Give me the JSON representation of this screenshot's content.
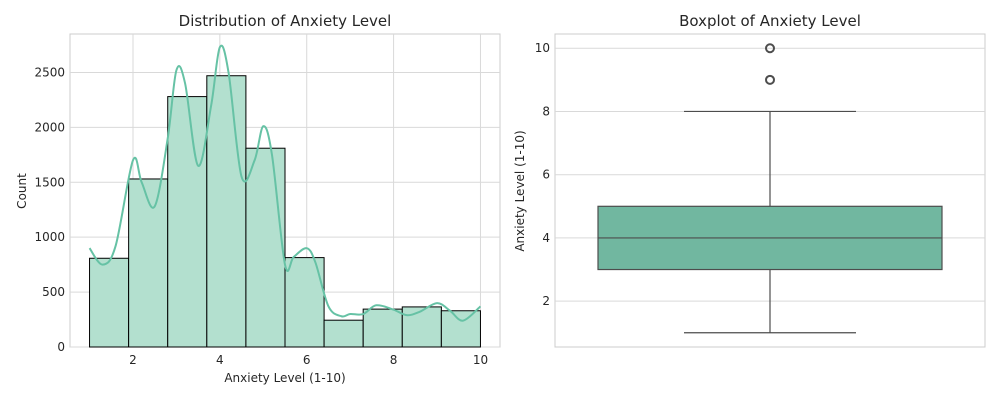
{
  "chart_data": [
    {
      "type": "bar",
      "subtype": "histogram_with_kde",
      "title": "Distribution of Anxiety Level",
      "xlabel": "Anxiety Level (1-10)",
      "ylabel": "Count",
      "xlim": [
        0.55,
        10.45
      ],
      "ylim": [
        0,
        2850
      ],
      "bin_edges": [
        1.0,
        1.9,
        2.8,
        3.7,
        4.6,
        5.5,
        6.4,
        7.3,
        8.2,
        9.1,
        10.0
      ],
      "values": [
        808,
        1530,
        2280,
        2470,
        1810,
        814,
        244,
        345,
        365,
        330
      ],
      "kde": {
        "x": [
          1.0,
          1.3,
          1.6,
          2.0,
          2.2,
          2.5,
          2.8,
          3.0,
          3.2,
          3.5,
          3.8,
          4.0,
          4.2,
          4.5,
          4.8,
          5.0,
          5.2,
          5.5,
          5.7,
          6.0,
          6.2,
          6.5,
          6.8,
          7.0,
          7.3,
          7.6,
          8.0,
          8.3,
          8.6,
          9.0,
          9.3,
          9.6,
          10.0
        ],
        "y": [
          900,
          750,
          920,
          1700,
          1500,
          1280,
          1900,
          2520,
          2400,
          1650,
          2200,
          2730,
          2500,
          1550,
          1700,
          2010,
          1750,
          750,
          820,
          900,
          770,
          370,
          280,
          300,
          300,
          380,
          340,
          290,
          320,
          400,
          330,
          240,
          370
        ]
      },
      "xticks": [
        "2",
        "4",
        "6",
        "8",
        "10"
      ],
      "yticks": [
        "0",
        "500",
        "1000",
        "1500",
        "2000",
        "2500"
      ],
      "grid": true,
      "colors": {
        "bar": "#b3e0cf",
        "edge": "#000000",
        "kde": "#66c2a5"
      }
    },
    {
      "type": "box",
      "title": "Boxplot of Anxiety Level",
      "xlabel": "",
      "ylabel": "Anxiety Level (1-10)",
      "ylim": [
        0.55,
        10.45
      ],
      "stats": {
        "whisker_low": 1,
        "q1": 3,
        "median": 4,
        "q3": 5,
        "whisker_high": 8,
        "outliers": [
          9,
          10
        ]
      },
      "yticks": [
        "2",
        "4",
        "6",
        "8",
        "10"
      ],
      "grid": true,
      "colors": {
        "box": "#71b7a0",
        "line": "#4d4d4d"
      }
    }
  ]
}
